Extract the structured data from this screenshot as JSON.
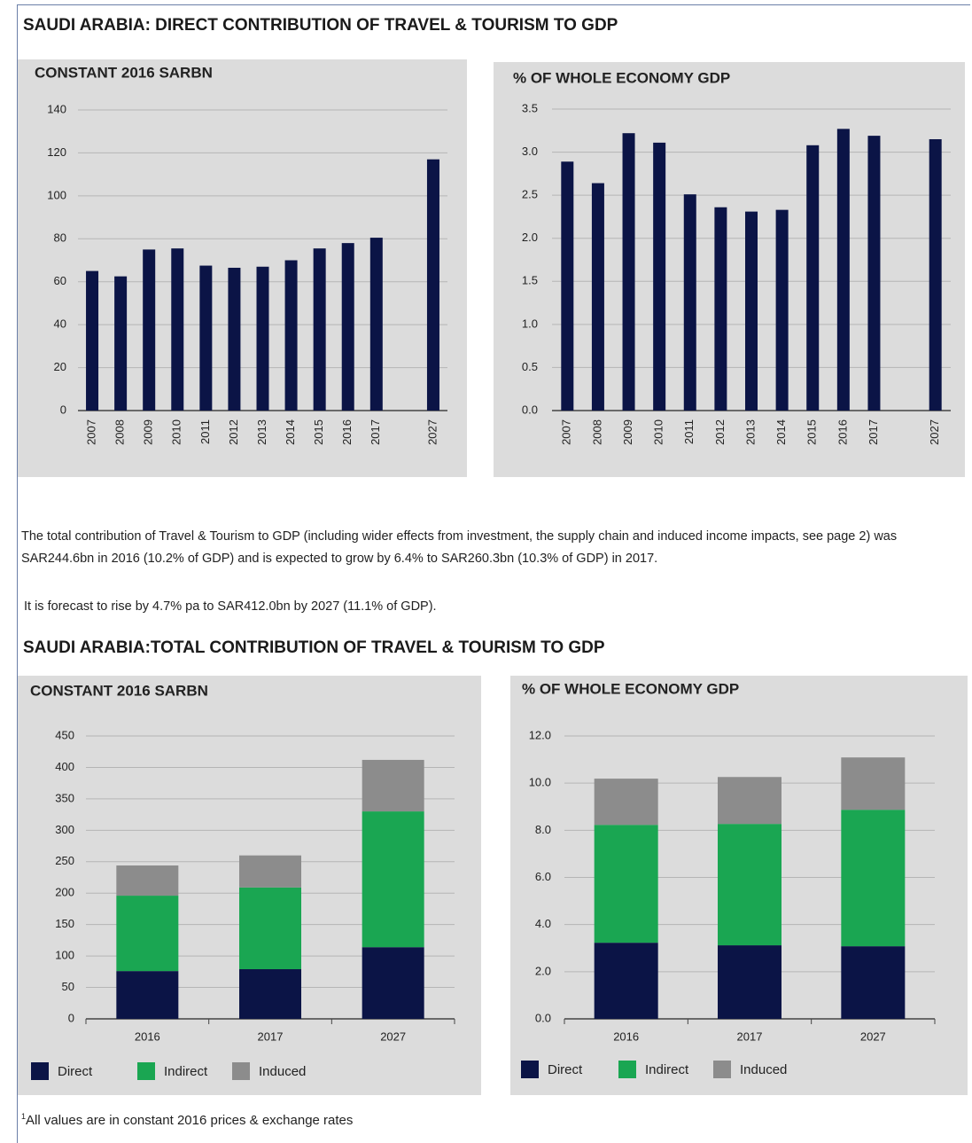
{
  "sections": [
    "SAUDI ARABIA: DIRECT CONTRIBUTION OF  TRAVEL & TOURISM TO GDP",
    "SAUDI ARABIA:TOTAL CONTRIBUTION OF TRAVEL & TOURISM TO GDP"
  ],
  "paragraphs": [
    "The total contribution of Travel & Tourism to GDP (including wider effects from investment, the supply chain and induced income impacts, see page 2) was  SAR244.6bn in 2016 (10.2% of GDP) and is expected to grow by 6.4% to SAR260.3bn (10.3% of GDP) in 2017.",
    "It is forecast to rise by 4.7% pa to SAR412.0bn by 2027 (11.1% of GDP)."
  ],
  "footnote": {
    "marker": "1",
    "text": "All values are in constant 2016 prices & exchange rates"
  },
  "chart_data": [
    {
      "type": "bar",
      "title": "CONSTANT 2016 SARBN",
      "categories": [
        "2007",
        "2008",
        "2009",
        "2010",
        "2011",
        "2012",
        "2013",
        "2014",
        "2015",
        "2016",
        "2017",
        null,
        "2027"
      ],
      "values": [
        65,
        62.5,
        75,
        75.5,
        67.5,
        66.5,
        67,
        70,
        75.5,
        78,
        80.5,
        null,
        117
      ],
      "color": "#0b1446",
      "ylim": [
        0,
        140
      ],
      "yticks": [
        0,
        20,
        40,
        60,
        80,
        100,
        120,
        140
      ],
      "grid": true
    },
    {
      "type": "bar",
      "title": "% OF WHOLE ECONOMY GDP",
      "categories": [
        "2007",
        "2008",
        "2009",
        "2010",
        "2011",
        "2012",
        "2013",
        "2014",
        "2015",
        "2016",
        "2017",
        null,
        "2027"
      ],
      "values": [
        2.89,
        2.64,
        3.22,
        3.11,
        2.51,
        2.36,
        2.31,
        2.33,
        3.08,
        3.27,
        3.19,
        null,
        3.15
      ],
      "color": "#0b1446",
      "ylim": [
        0,
        3.5
      ],
      "yticks": [
        {
          "value": 0,
          "label": "0.0"
        },
        0.5,
        {
          "value": 1,
          "label": "1.0"
        },
        1.5,
        {
          "value": 2,
          "label": "2.0"
        },
        2.5,
        {
          "value": 3,
          "label": "3.0"
        },
        3.5
      ],
      "grid": true
    },
    {
      "type": "bar",
      "stacked": true,
      "title": "CONSTANT 2016 SARBN",
      "categories": [
        "2016",
        "2017",
        "2027"
      ],
      "series": [
        {
          "name": "Direct",
          "color": "#0b1446",
          "values": [
            76,
            79,
            114
          ]
        },
        {
          "name": "Indirect",
          "color": "#1aa652",
          "values": [
            120,
            130,
            216
          ]
        },
        {
          "name": "Induced",
          "color": "#8c8c8c",
          "values": [
            48,
            51,
            82
          ]
        }
      ],
      "ylim": [
        0,
        450
      ],
      "yticks": [
        0,
        50,
        100,
        150,
        200,
        250,
        300,
        350,
        400,
        450
      ],
      "grid": true,
      "legend": "bottom"
    },
    {
      "type": "bar",
      "stacked": true,
      "title": "% OF WHOLE ECONOMY GDP",
      "categories": [
        "2016",
        "2017",
        "2027"
      ],
      "series": [
        {
          "name": "Direct",
          "color": "#0b1446",
          "values": [
            3.23,
            3.12,
            3.08
          ]
        },
        {
          "name": "Indirect",
          "color": "#1aa652",
          "values": [
            5.0,
            5.15,
            5.79
          ]
        },
        {
          "name": "Induced",
          "color": "#8c8c8c",
          "values": [
            1.96,
            1.99,
            2.22
          ]
        }
      ],
      "ylim": [
        0,
        12
      ],
      "yticks": [
        {
          "value": 0,
          "label": "0.0"
        },
        {
          "value": 2,
          "label": "2.0"
        },
        {
          "value": 4,
          "label": "4.0"
        },
        {
          "value": 6,
          "label": "6.0"
        },
        {
          "value": 8,
          "label": "8.0"
        },
        {
          "value": 10,
          "label": "10.0"
        },
        {
          "value": 12,
          "label": "12.0"
        }
      ],
      "grid": true,
      "legend": "bottom"
    }
  ]
}
